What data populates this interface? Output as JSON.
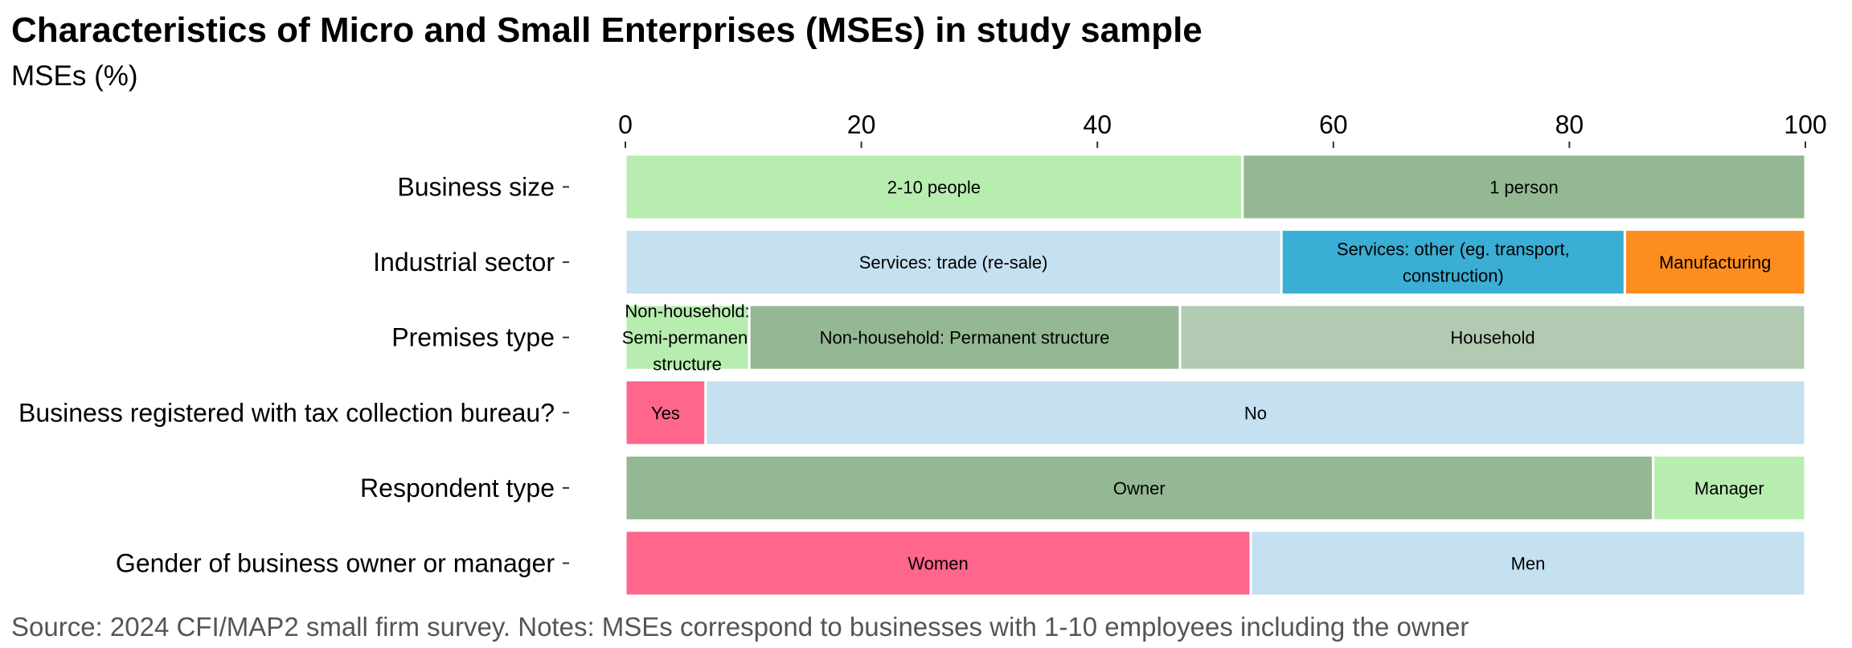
{
  "chart_data": {
    "type": "bar",
    "orientation": "horizontal",
    "stacked": true,
    "title": "Characteristics of Micro and Small Enterprises (MSEs) in study sample",
    "subtitle": "MSEs (%)",
    "caption": "Source: 2024 CFI/MAP2 small firm survey. Notes: MSEs correspond to businesses with 1-10 employees including the owner",
    "xlim": [
      0,
      100
    ],
    "x_ticks": [
      "0",
      "20",
      "40",
      "60",
      "80",
      "100"
    ],
    "x_tick_values": [
      0,
      20,
      40,
      60,
      80,
      100
    ],
    "x_axis_position": "top",
    "grid": false,
    "legend": "none",
    "colors": {
      "light_green": "#b8edb0",
      "sage_green": "#94b894",
      "pale_sage": "#b2cab2",
      "light_blue": "#c5e0f0",
      "teal_blue": "#3aaed4",
      "orange": "#fd8d1f",
      "pink": "#ff668c"
    },
    "categories": [
      "Business size",
      "Industrial sector",
      "Premises type",
      "Business registered with tax collection bureau?",
      "Respondent type",
      "Gender of business owner or manager"
    ],
    "rows": [
      {
        "category": "Business size",
        "segments": [
          {
            "label": "2-10 people",
            "value": 52.3,
            "color": "#b8edb0"
          },
          {
            "label": "1 person",
            "value": 47.7,
            "color": "#94b894"
          }
        ]
      },
      {
        "category": "Industrial sector",
        "segments": [
          {
            "label": "Services: trade (re-sale)",
            "value": 55.6,
            "color": "#c5e0f0"
          },
          {
            "label": "Services: other (eg. transport, construction)",
            "value": 29.1,
            "color": "#3aaed4"
          },
          {
            "label": "Manufacturing",
            "value": 15.3,
            "color": "#fd8d1f"
          }
        ]
      },
      {
        "category": "Premises type",
        "segments": [
          {
            "label": "Non-household: Semi-permanent structure",
            "value": 10.5,
            "color": "#b8edb0"
          },
          {
            "label": "Non-household: Permanent structure",
            "value": 36.5,
            "color": "#94b894"
          },
          {
            "label": "Household",
            "value": 53.0,
            "color": "#b2cab2"
          }
        ]
      },
      {
        "category": "Business registered with tax collection bureau?",
        "segments": [
          {
            "label": "Yes",
            "value": 6.8,
            "color": "#ff668c"
          },
          {
            "label": "No",
            "value": 93.2,
            "color": "#c5e0f0"
          }
        ]
      },
      {
        "category": "Respondent type",
        "segments": [
          {
            "label": "Owner",
            "value": 87.1,
            "color": "#94b894"
          },
          {
            "label": "Manager",
            "value": 12.9,
            "color": "#b8edb0"
          }
        ]
      },
      {
        "category": "Gender of business owner or manager",
        "segments": [
          {
            "label": "Women",
            "value": 53.0,
            "color": "#ff668c"
          },
          {
            "label": "Men",
            "value": 47.0,
            "color": "#c5e0f0"
          }
        ]
      }
    ]
  }
}
